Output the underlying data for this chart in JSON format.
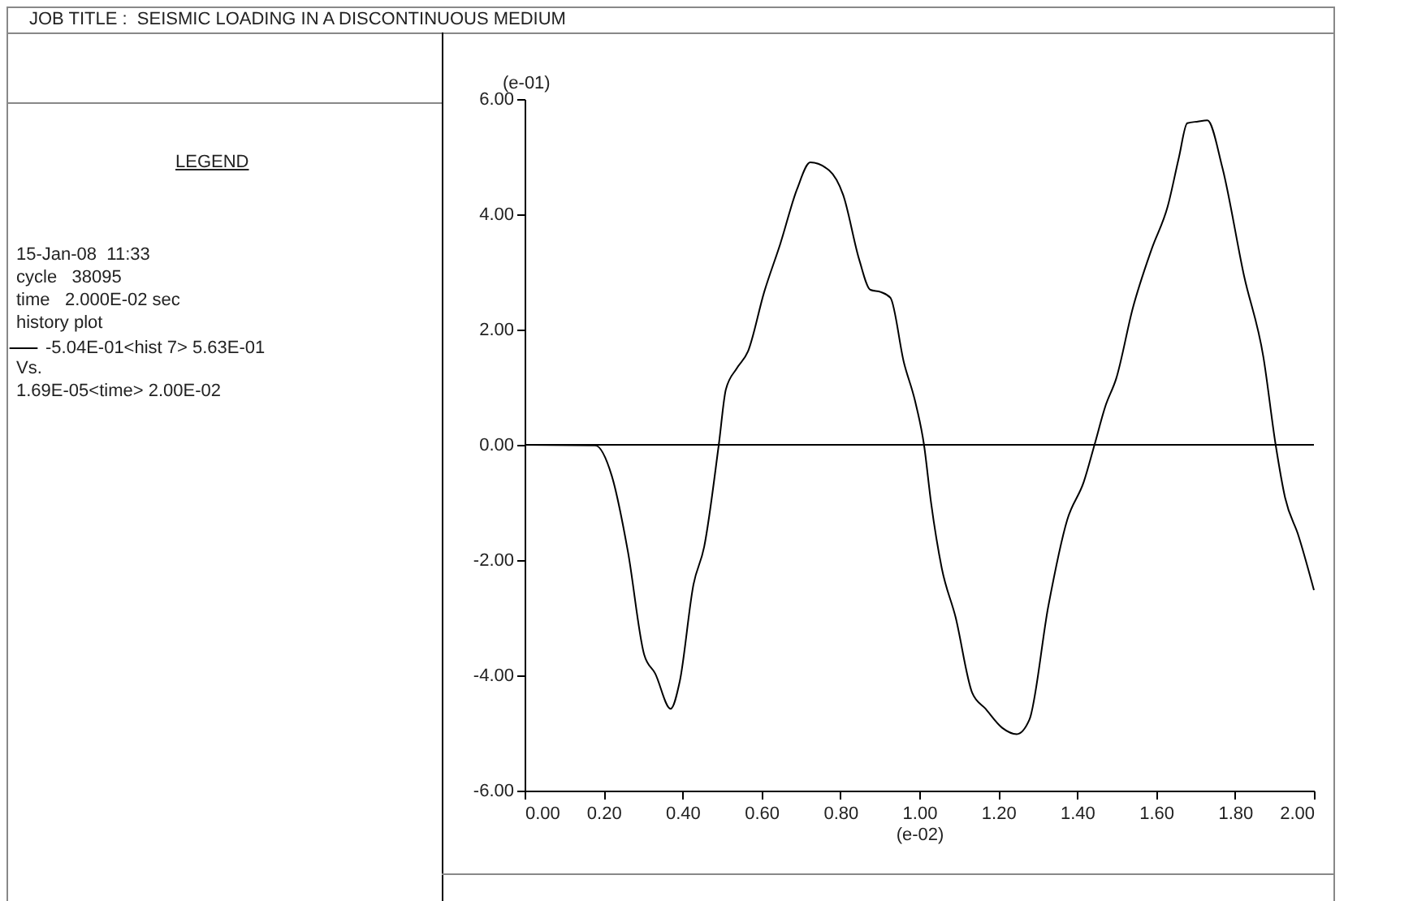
{
  "chart_data": {
    "type": "line",
    "title": "JOB TITLE :  SEISMIC LOADING IN A DISCONTINUOUS MEDIUM",
    "xlabel": "(e-02)",
    "ylabel": "(e-01)",
    "x": [
      0,
      0.179,
      0.221,
      0.262,
      0.303,
      0.331,
      0.37,
      0.393,
      0.428,
      0.455,
      0.492,
      0.51,
      0.538,
      0.566,
      0.607,
      0.648,
      0.69,
      0.724,
      0.772,
      0.807,
      0.848,
      0.876,
      0.903,
      0.927,
      0.961,
      0.989,
      1.012,
      1.03,
      1.057,
      1.092,
      1.134,
      1.168,
      1.21,
      1.247,
      1.279,
      1.327,
      1.375,
      1.417,
      1.444,
      1.472,
      1.499,
      1.541,
      1.589,
      1.63,
      1.658,
      1.679,
      1.706,
      1.73,
      1.768,
      1.823,
      1.872,
      1.903,
      1.927,
      1.961,
      2.0
    ],
    "series": [
      {
        "name": "-5.04E-01<hist  7> 5.63E-01",
        "color": "#000000",
        "values": [
          0,
          -0.01,
          -0.54,
          -1.86,
          -3.64,
          -3.97,
          -4.58,
          -4.11,
          -2.42,
          -1.77,
          0,
          0.96,
          1.33,
          1.62,
          2.65,
          3.49,
          4.43,
          4.9,
          4.76,
          4.34,
          3.21,
          2.69,
          2.65,
          2.55,
          1.43,
          0.77,
          0,
          -1.01,
          -2.14,
          -2.99,
          -4.3,
          -4.58,
          -4.91,
          -5.02,
          -4.77,
          -2.8,
          -1.3,
          -0.64,
          0,
          0.68,
          1.15,
          2.37,
          3.4,
          4.15,
          4.99,
          5.58,
          5.61,
          5.63,
          4.81,
          2.93,
          1.52,
          0,
          -0.92,
          -1.58,
          -2.52
        ]
      }
    ],
    "xlim": [
      0,
      2
    ],
    "ylim": [
      -6,
      6
    ],
    "xticks": [
      {
        "value": 0,
        "label": "0.00"
      },
      {
        "value": 0.2,
        "label": "0.20"
      },
      {
        "value": 0.4,
        "label": "0.40"
      },
      {
        "value": 0.6,
        "label": "0.60"
      },
      {
        "value": 0.8,
        "label": "0.80"
      },
      {
        "value": 1,
        "label": "1.00"
      },
      {
        "value": 1.2,
        "label": "1.20"
      },
      {
        "value": 1.4,
        "label": "1.40"
      },
      {
        "value": 1.6,
        "label": "1.60"
      },
      {
        "value": 1.8,
        "label": "1.80"
      },
      {
        "value": 2,
        "label": "2.00"
      }
    ],
    "yticks": [
      {
        "value": -6,
        "label": "-6.00"
      },
      {
        "value": -4,
        "label": "-4.00"
      },
      {
        "value": -2,
        "label": "-2.00"
      },
      {
        "value": 0,
        "label": "0.00"
      },
      {
        "value": 2,
        "label": "2.00"
      },
      {
        "value": 4,
        "label": "4.00"
      },
      {
        "value": 6,
        "label": "6.00"
      }
    ],
    "ref_lines": [
      {
        "axis": "y",
        "value": 0,
        "color": "#000000"
      }
    ],
    "legend": "left",
    "annotations": [
      "LEGEND",
      "15-Jan-08  11:33",
      "cycle   38095",
      "time   2.000E-02 sec",
      "history plot",
      "Vs.",
      "1.69E-05<time> 2.00E-02"
    ]
  }
}
